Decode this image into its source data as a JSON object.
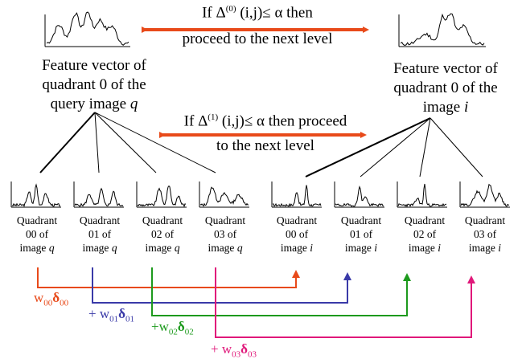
{
  "top_condition": {
    "line1_prefix": "If Δ",
    "line1_sup": "(0)",
    "line1_suffix": " (i,j)≤ α then",
    "line2": "proceed to the next level"
  },
  "mid_condition": {
    "line1_prefix": "If Δ",
    "line1_sup": "(1)",
    "line1_suffix": " (i,j)≤ α then proceed",
    "line2": "to the next level"
  },
  "query_feature": {
    "line1": "Feature vector of",
    "line2": "quadrant 0 of the",
    "line3_text": "query image ",
    "line3_var": "q"
  },
  "image_feature": {
    "line1": "Feature vector of",
    "line2": "quadrant 0 of the",
    "line3_text": "image ",
    "line3_var": "i"
  },
  "quadrants": [
    {
      "l1": "Quadrant",
      "l2": "00 of",
      "l3": "image ",
      "var": "q"
    },
    {
      "l1": "Quadrant",
      "l2": "01 of",
      "l3": "image ",
      "var": "q"
    },
    {
      "l1": "Quadrant",
      "l2": "02 of",
      "l3": "image ",
      "var": "q"
    },
    {
      "l1": "Quadrant",
      "l2": "03 of",
      "l3": "image ",
      "var": "q"
    },
    {
      "l1": "Quadrant",
      "l2": "00 of",
      "l3": "image ",
      "var": "i"
    },
    {
      "l1": "Quadrant",
      "l2": "01 of",
      "l3": "image ",
      "var": "i"
    },
    {
      "l1": "Quadrant",
      "l2": "02 of",
      "l3": "image ",
      "var": "i"
    },
    {
      "l1": "Quadrant",
      "l2": "03 of",
      "l3": "image ",
      "var": "i"
    }
  ],
  "weights": [
    {
      "prefix": "",
      "w": "w",
      "w_sub": "00",
      "d": "δ",
      "d_sub": "00"
    },
    {
      "prefix": "+ ",
      "w": "w",
      "w_sub": "01",
      "d": "δ",
      "d_sub": "01"
    },
    {
      "prefix": "+",
      "w": "w",
      "w_sub": "02",
      "d": "δ",
      "d_sub": "02"
    },
    {
      "prefix": "+ ",
      "w": "w",
      "w_sub": "03",
      "d": "δ",
      "d_sub": "03"
    }
  ],
  "colors": {
    "red": "#e84a1a",
    "blue": "#3a3aa8",
    "green": "#1d9a1d",
    "magenta": "#e0187a",
    "arrow": "#e84a1a",
    "ink": "#000000"
  }
}
